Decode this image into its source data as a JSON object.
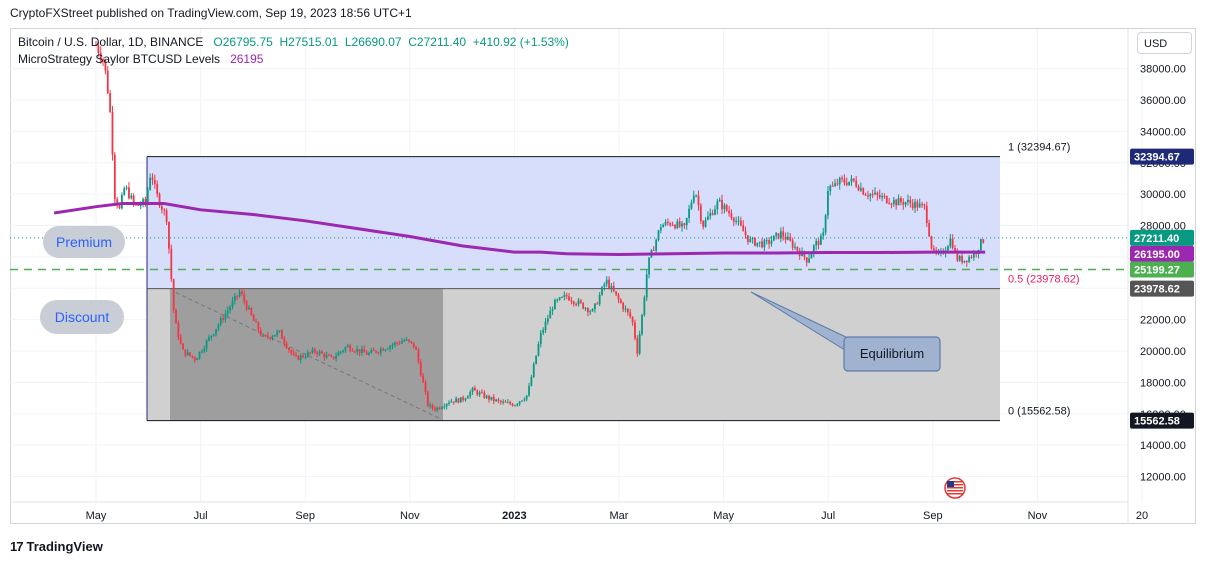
{
  "header": {
    "published_line": "CryptoFXStreet published on TradingView.com, Sep 19, 2023 18:56 UTC+1"
  },
  "legend": {
    "symbol": "Bitcoin / U.S. Dollar, 1D, BINANCE",
    "open": "O26795.75",
    "high": "H27515.01",
    "low": "L26690.07",
    "close": "C27211.40",
    "change": "+410.92 (+1.53%)",
    "indicator_name": "MicroStrategy Saylor BTCUSD Levels",
    "indicator_value": "26195"
  },
  "currency_button": "USD",
  "footer": {
    "brand": "TradingView",
    "logo_text": "17"
  },
  "colors": {
    "up": "#089981",
    "down": "#f23645",
    "purple": "#9c27b0",
    "premium_zone": "#d4dcfc",
    "discount_zone": "#d0d0d0",
    "discount_dark": "#9e9e9e",
    "green_dashed": "#4caf50",
    "fib_label": "#e91e63"
  },
  "chart_data": {
    "type": "candlestick",
    "ylim": [
      10500,
      40000
    ],
    "y_ticks": [
      12000,
      14000,
      16000,
      18000,
      20000,
      22000,
      24000,
      26000,
      28000,
      30000,
      32000,
      34000,
      36000,
      38000
    ],
    "y_tick_labels": [
      "12000.00",
      "14000.00",
      "16000.00",
      "18000.00",
      "20000.00",
      "22000.00",
      "24000.00",
      "26000.00",
      "28000.00",
      "30000.00",
      "32000.00",
      "34000.00",
      "36000.00",
      "38000.00"
    ],
    "x_labels": [
      {
        "label": "May",
        "month": 0
      },
      {
        "label": "Jul",
        "month": 2
      },
      {
        "label": "Sep",
        "month": 4
      },
      {
        "label": "Nov",
        "month": 6
      },
      {
        "label": "2023",
        "month": 8
      },
      {
        "label": "Mar",
        "month": 10
      },
      {
        "label": "May",
        "month": 12
      },
      {
        "label": "Jul",
        "month": 14
      },
      {
        "label": "Sep",
        "month": 16
      },
      {
        "label": "Nov",
        "month": 18
      },
      {
        "label": "20",
        "month": 20
      }
    ],
    "price_path": [
      [
        0,
        39500
      ],
      [
        0.15,
        38500
      ],
      [
        0.25,
        36000
      ],
      [
        0.3,
        34000
      ],
      [
        0.35,
        30000
      ],
      [
        0.45,
        29000
      ],
      [
        0.55,
        30500
      ],
      [
        0.75,
        29200
      ],
      [
        0.95,
        29500
      ],
      [
        1.05,
        31500
      ],
      [
        1.15,
        30000
      ],
      [
        1.35,
        28500
      ],
      [
        1.5,
        22000
      ],
      [
        1.65,
        20000
      ],
      [
        1.9,
        19500
      ],
      [
        2.2,
        21000
      ],
      [
        2.5,
        22500
      ],
      [
        2.75,
        23800
      ],
      [
        3.0,
        22000
      ],
      [
        3.2,
        20800
      ],
      [
        3.5,
        21200
      ],
      [
        3.8,
        19500
      ],
      [
        4.2,
        20000
      ],
      [
        4.5,
        19500
      ],
      [
        4.8,
        20300
      ],
      [
        5.2,
        19800
      ],
      [
        5.5,
        20200
      ],
      [
        5.9,
        20700
      ],
      [
        6.1,
        20300
      ],
      [
        6.25,
        18000
      ],
      [
        6.35,
        16500
      ],
      [
        6.5,
        16300
      ],
      [
        6.75,
        16800
      ],
      [
        7.0,
        16900
      ],
      [
        7.2,
        17500
      ],
      [
        7.5,
        17000
      ],
      [
        7.75,
        16700
      ],
      [
        8.0,
        16600
      ],
      [
        8.25,
        17200
      ],
      [
        8.5,
        21000
      ],
      [
        8.75,
        23000
      ],
      [
        9.0,
        23500
      ],
      [
        9.25,
        23000
      ],
      [
        9.5,
        22500
      ],
      [
        9.75,
        24500
      ],
      [
        10.0,
        23200
      ],
      [
        10.25,
        22000
      ],
      [
        10.35,
        20000
      ],
      [
        10.45,
        22500
      ],
      [
        10.55,
        25500
      ],
      [
        10.8,
        28000
      ],
      [
        11.0,
        28200
      ],
      [
        11.25,
        27800
      ],
      [
        11.45,
        30400
      ],
      [
        11.6,
        28000
      ],
      [
        11.9,
        29500
      ],
      [
        12.2,
        28500
      ],
      [
        12.5,
        27000
      ],
      [
        12.8,
        26800
      ],
      [
        13.1,
        27500
      ],
      [
        13.4,
        26500
      ],
      [
        13.6,
        25800
      ],
      [
        13.75,
        26800
      ],
      [
        13.9,
        27200
      ],
      [
        14.0,
        30500
      ],
      [
        14.1,
        30400
      ],
      [
        14.2,
        30800
      ],
      [
        14.5,
        30800
      ],
      [
        14.7,
        30100
      ],
      [
        15.0,
        29800
      ],
      [
        15.3,
        29500
      ],
      [
        15.5,
        29500
      ],
      [
        15.7,
        29300
      ],
      [
        15.85,
        29100
      ],
      [
        16.0,
        26200
      ],
      [
        16.15,
        26100
      ],
      [
        16.35,
        27200
      ],
      [
        16.45,
        25900
      ],
      [
        16.6,
        25800
      ],
      [
        16.8,
        26200
      ],
      [
        16.9,
        26800
      ],
      [
        17.0,
        27211
      ]
    ],
    "premium_label": "Premium",
    "discount_label": "Discount",
    "equilibrium_label": "Equilibrium",
    "fib_levels": [
      {
        "label": "1 (32394.67)",
        "value": 32394.67,
        "tag": "32394.67"
      },
      {
        "label": "0.5 (23978.62)",
        "value": 23978.62,
        "tag": "23978.62"
      },
      {
        "label": "0 (15562.58)",
        "value": 15562.58,
        "tag": "15562.58"
      }
    ],
    "current_price": {
      "value": 27211.4,
      "tag": "27211.40"
    },
    "saylor_level": {
      "value": 26195,
      "tag": "26195.00"
    },
    "green_dashed_level": {
      "value": 25199.27,
      "tag": "25199.27"
    },
    "saylor_line": [
      [
        -0.8,
        28800
      ],
      [
        0,
        29200
      ],
      [
        0.5,
        29400
      ],
      [
        1.0,
        29400
      ],
      [
        1.3,
        29400
      ],
      [
        2,
        29000
      ],
      [
        3,
        28700
      ],
      [
        4,
        28300
      ],
      [
        5,
        27800
      ],
      [
        6,
        27300
      ],
      [
        7,
        26700
      ],
      [
        8,
        26300
      ],
      [
        8.5,
        26300
      ],
      [
        9,
        26200
      ],
      [
        10,
        26150
      ],
      [
        11,
        26200
      ],
      [
        12,
        26250
      ],
      [
        13,
        26250
      ],
      [
        14,
        26280
      ],
      [
        15,
        26280
      ],
      [
        16,
        26300
      ],
      [
        17,
        26300
      ]
    ]
  }
}
